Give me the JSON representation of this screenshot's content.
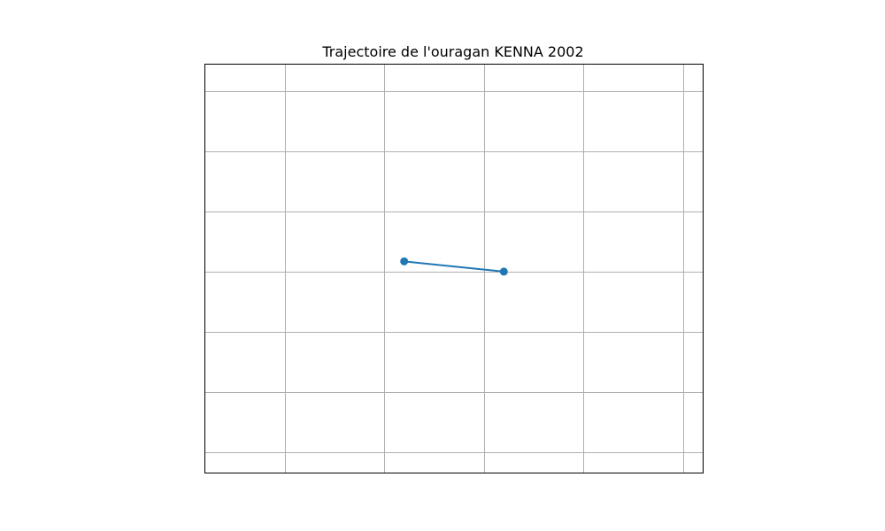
{
  "chart_data": {
    "type": "line",
    "title": "Trajectoire de l'ouragan KENNA 2002",
    "xlabel": "",
    "ylabel": "",
    "xlim": [
      0,
      5
    ],
    "ylim": [
      0,
      6.8
    ],
    "grid": true,
    "x_gridlines": [
      0.8,
      1.8,
      2.8,
      3.8,
      4.8
    ],
    "y_gridlines": [
      0.35,
      1.35,
      2.35,
      3.35,
      4.35,
      5.35,
      6.35
    ],
    "series": [
      {
        "x": [
          2.0,
          3.0
        ],
        "y": [
          3.52,
          3.35
        ],
        "marker": "circle"
      }
    ],
    "colors": {
      "series": "#1f77b4",
      "grid": "#b0b0b0",
      "frame": "#000000"
    }
  }
}
